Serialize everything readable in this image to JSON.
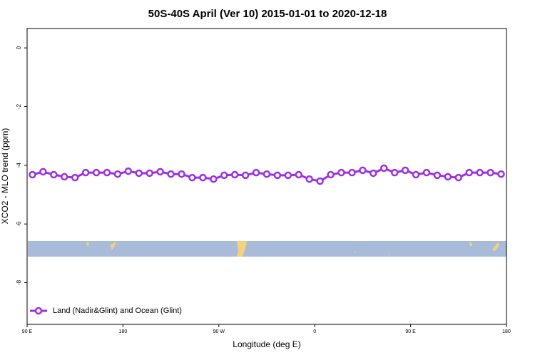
{
  "chart_data": {
    "type": "line",
    "title": "50S-40S April (Ver 10)   2015-01-01 to 2020-12-18",
    "x_label": "Longitude (deg E)",
    "y_label": "XCO2 - MLO trend (ppm)",
    "x": [
      95,
      105,
      115,
      125,
      135,
      145,
      155,
      165,
      175,
      185,
      195,
      205,
      215,
      225,
      235,
      245,
      255,
      265,
      275,
      285,
      295,
      305,
      315,
      325,
      335,
      345,
      355,
      365,
      375,
      385,
      395,
      405,
      415,
      425,
      435,
      445,
      455,
      465,
      475,
      485,
      495,
      505,
      515,
      525,
      535
    ],
    "series": [
      {
        "name": "Land (Nadir&Glint) and Ocean (Glint)",
        "color": "#9b30e0",
        "values": [
          -4.32,
          -4.22,
          -4.32,
          -4.39,
          -4.42,
          -4.25,
          -4.25,
          -4.25,
          -4.3,
          -4.2,
          -4.27,
          -4.27,
          -4.22,
          -4.3,
          -4.3,
          -4.42,
          -4.42,
          -4.47,
          -4.34,
          -4.32,
          -4.34,
          -4.25,
          -4.3,
          -4.34,
          -4.34,
          -4.32,
          -4.47,
          -4.54,
          -4.32,
          -4.25,
          -4.25,
          -4.17,
          -4.27,
          -4.1,
          -4.25,
          -4.17,
          -4.32,
          -4.25,
          -4.34,
          -4.39,
          -4.42,
          -4.25,
          -4.25,
          -4.25,
          -4.3
        ]
      }
    ],
    "xlim": [
      90,
      540
    ],
    "xticks": [
      {
        "value": 90,
        "label": "90 E"
      },
      180,
      {
        "value": 270,
        "label": "90 W"
      },
      {
        "value": 360,
        "label": "0"
      },
      {
        "value": 450,
        "label": "90 E"
      },
      {
        "value": 540,
        "label": "180"
      }
    ],
    "ylim": [
      -9.42,
      0.66
    ],
    "yticks": [
      0,
      -2,
      -4,
      -6,
      -8
    ],
    "legend": "bottom-left"
  }
}
